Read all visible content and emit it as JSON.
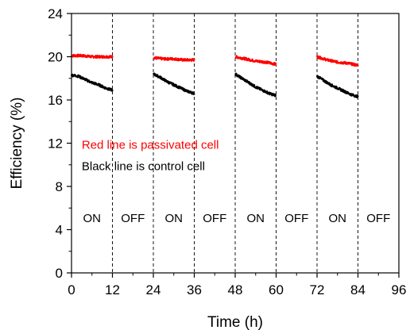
{
  "chart_data": {
    "type": "line",
    "xlabel": "Time (h)",
    "ylabel": "Efficiency (%)",
    "xlim": [
      0,
      96
    ],
    "ylim": [
      0,
      24
    ],
    "x_ticks": [
      0,
      12,
      24,
      36,
      48,
      60,
      72,
      84,
      96
    ],
    "y_ticks": [
      0,
      4,
      8,
      12,
      16,
      20,
      24
    ],
    "x_tick_labels": [
      "0",
      "12",
      "24",
      "36",
      "48",
      "60",
      "72",
      "84",
      "96"
    ],
    "y_tick_labels": [
      "0",
      "4",
      "8",
      "12",
      "16",
      "20",
      "24"
    ],
    "grid": false,
    "dividers_x": [
      12,
      24,
      36,
      48,
      60,
      72,
      84
    ],
    "phase_labels": [
      {
        "x": 6,
        "y": 4.7,
        "text": "ON"
      },
      {
        "x": 18,
        "y": 4.7,
        "text": "OFF"
      },
      {
        "x": 30,
        "y": 4.7,
        "text": "ON"
      },
      {
        "x": 42,
        "y": 4.7,
        "text": "OFF"
      },
      {
        "x": 54,
        "y": 4.7,
        "text": "ON"
      },
      {
        "x": 66,
        "y": 4.7,
        "text": "OFF"
      },
      {
        "x": 78,
        "y": 4.7,
        "text": "ON"
      },
      {
        "x": 90,
        "y": 4.7,
        "text": "OFF"
      }
    ],
    "annotations": [
      {
        "text": "Red line is passivated cell",
        "color": "#ff0000",
        "x": 3,
        "y": 11.5
      },
      {
        "text": "Black line is control cell",
        "color": "#000000",
        "x": 3,
        "y": 9.5
      }
    ],
    "series": [
      {
        "color": "#ff0000",
        "segments": [
          {
            "x": [
              0,
              3,
              6,
              9,
              12
            ],
            "y": [
              20.1,
              20.1,
              20.0,
              20.0,
              20.0
            ]
          },
          {
            "x": [
              24,
              27,
              30,
              33,
              36
            ],
            "y": [
              19.9,
              19.8,
              19.8,
              19.7,
              19.7
            ]
          },
          {
            "x": [
              48,
              51,
              54,
              57,
              60
            ],
            "y": [
              20.0,
              19.8,
              19.6,
              19.5,
              19.3
            ]
          },
          {
            "x": [
              72,
              75,
              78,
              81,
              84
            ],
            "y": [
              20.0,
              19.7,
              19.5,
              19.4,
              19.2
            ]
          }
        ]
      },
      {
        "color": "#000000",
        "segments": [
          {
            "x": [
              0,
              2,
              4,
              6,
              8,
              10,
              12
            ],
            "y": [
              18.3,
              18.2,
              17.9,
              17.6,
              17.4,
              17.1,
              16.9
            ]
          },
          {
            "x": [
              24,
              26,
              28,
              30,
              32,
              34,
              36
            ],
            "y": [
              18.4,
              18.1,
              17.7,
              17.4,
              17.1,
              16.8,
              16.6
            ]
          },
          {
            "x": [
              48,
              50,
              52,
              54,
              56,
              58,
              60
            ],
            "y": [
              18.4,
              18.0,
              17.6,
              17.2,
              16.9,
              16.6,
              16.4
            ]
          },
          {
            "x": [
              72,
              74,
              76,
              78,
              80,
              82,
              84
            ],
            "y": [
              18.2,
              17.8,
              17.4,
              17.1,
              16.8,
              16.5,
              16.3
            ]
          }
        ]
      }
    ]
  }
}
